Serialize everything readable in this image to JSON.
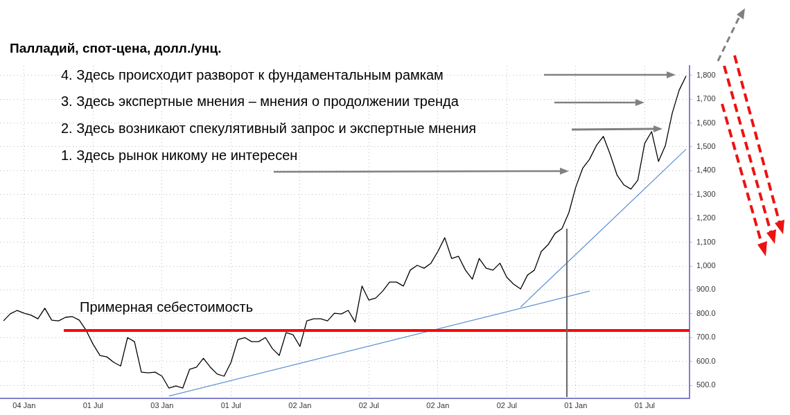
{
  "chart_data": {
    "type": "line",
    "title": "Палладий, спот-цена, долл./унц.",
    "annotations": [
      "4. Здесь происходит разворот к фундаментальным рамкам",
      "3. Здесь экспертные мнения – мнения о продолжении тренда",
      "2. Здесь возникают спекулятивный запрос и экспертные мнения",
      "1. Здесь рынок никому не интересен"
    ],
    "categories": [
      null,
      null,
      null,
      "04 Jan",
      null,
      null,
      null,
      null,
      null,
      null,
      null,
      null,
      null,
      "01 Jul",
      null,
      null,
      null,
      null,
      null,
      null,
      null,
      null,
      null,
      "03 Jan",
      null,
      null,
      null,
      null,
      null,
      null,
      null,
      null,
      null,
      "01 Jul",
      null,
      null,
      null,
      null,
      null,
      null,
      null,
      null,
      null,
      "02 Jan",
      null,
      null,
      null,
      null,
      null,
      null,
      null,
      null,
      null,
      "02 Jul",
      null,
      null,
      null,
      null,
      null,
      null,
      null,
      null,
      null,
      "02 Jan",
      null,
      null,
      null,
      null,
      null,
      null,
      null,
      null,
      null,
      "02 Jul",
      null,
      null,
      null,
      null,
      null,
      null,
      null,
      null,
      null,
      "01 Jan",
      null,
      null,
      null,
      null,
      null,
      null,
      null,
      null,
      null,
      "01 Jul",
      null,
      null,
      null,
      null,
      null,
      null
    ],
    "series": [
      {
        "color": "#000000",
        "values": [
          770,
          800,
          814,
          802,
          794,
          779,
          823,
          773,
          770,
          785,
          788,
          773,
          730,
          672,
          625,
          619,
          596,
          581,
          700,
          683,
          555,
          552,
          555,
          538,
          488,
          497,
          488,
          567,
          576,
          613,
          576,
          547,
          538,
          596,
          692,
          700,
          683,
          683,
          700,
          654,
          625,
          721,
          712,
          663,
          770,
          779,
          779,
          770,
          802,
          799,
          814,
          765,
          916,
          857,
          866,
          895,
          933,
          933,
          916,
          983,
          1003,
          991,
          1012,
          1061,
          1119,
          1032,
          1041,
          983,
          945,
          1032,
          991,
          983,
          1012,
          953,
          924,
          904,
          962,
          983,
          1061,
          1090,
          1137,
          1157,
          1224,
          1331,
          1410,
          1448,
          1506,
          1544,
          1468,
          1381,
          1340,
          1323,
          1360,
          1515,
          1564,
          1439,
          1506,
          1642,
          1738,
          1797
        ]
      },
      {
        "type": "line",
        "color": "#5b8fd0",
        "values": [
          null,
          null,
          null,
          null,
          null,
          null,
          null,
          null,
          null,
          null,
          null,
          null,
          null,
          null,
          null,
          null,
          null,
          null,
          null,
          null,
          null,
          null,
          null,
          null,
          455,
          null,
          null,
          null,
          null,
          null,
          null,
          null,
          null,
          null,
          null,
          null,
          null,
          null,
          null,
          null,
          null,
          null,
          null,
          null,
          null,
          null,
          null,
          null,
          null,
          null,
          null,
          null,
          null,
          null,
          null,
          null,
          null,
          null,
          null,
          null,
          null,
          null,
          null,
          null,
          null,
          null,
          null,
          null,
          null,
          null,
          null,
          null,
          null,
          null,
          null,
          null,
          null,
          null,
          null,
          null,
          null,
          null,
          null,
          null,
          null,
          895,
          null,
          null,
          null,
          null,
          null,
          null,
          null,
          null,
          null,
          null,
          null,
          null,
          null,
          null
        ]
      },
      {
        "type": "line",
        "color": "#5b8fd0",
        "values": [
          null,
          null,
          null,
          null,
          null,
          null,
          null,
          null,
          null,
          null,
          null,
          null,
          null,
          null,
          null,
          null,
          null,
          null,
          null,
          null,
          null,
          null,
          null,
          null,
          null,
          null,
          null,
          null,
          null,
          null,
          null,
          null,
          null,
          null,
          null,
          null,
          null,
          null,
          null,
          null,
          null,
          null,
          null,
          null,
          null,
          null,
          null,
          null,
          null,
          null,
          null,
          null,
          null,
          null,
          null,
          null,
          null,
          null,
          null,
          null,
          null,
          null,
          null,
          null,
          null,
          null,
          null,
          null,
          null,
          null,
          null,
          null,
          null,
          null,
          null,
          828,
          null,
          null,
          null,
          null,
          null,
          null,
          null,
          null,
          null,
          null,
          null,
          null,
          null,
          null,
          null,
          null,
          null,
          null,
          null,
          null,
          null,
          null,
          null,
          1490
        ]
      }
    ],
    "ylim": [
      445,
      1840
    ],
    "yticks": [
      {
        "value": 500,
        "label": "500.0"
      },
      {
        "value": 600,
        "label": "600.0"
      },
      {
        "value": 700,
        "label": "700.0"
      },
      {
        "value": 800,
        "label": "800.0"
      },
      {
        "value": 900,
        "label": "900.0"
      },
      {
        "value": 1000,
        "label": "1,000"
      },
      {
        "value": 1100,
        "label": "1,100"
      },
      {
        "value": 1200,
        "label": "1,200"
      },
      {
        "value": 1300,
        "label": "1,300"
      },
      {
        "value": 1400,
        "label": "1,400"
      },
      {
        "value": 1500,
        "label": "1,500"
      },
      {
        "value": 1600,
        "label": "1,600"
      },
      {
        "value": 1700,
        "label": "1,700"
      },
      {
        "value": 1800,
        "label": "1,800"
      }
    ],
    "ref_lines": [
      {
        "axis": "y",
        "value": 730,
        "label": "Примерная себестоимость",
        "color": "#ff0000"
      }
    ],
    "grid": true,
    "legend": false,
    "marker": "none",
    "line_style": "solid"
  }
}
